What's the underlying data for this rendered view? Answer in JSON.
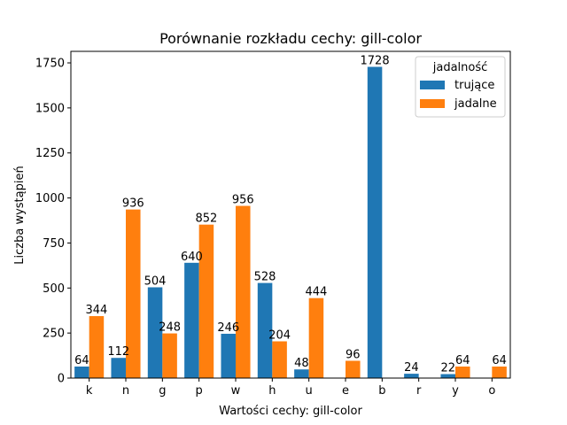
{
  "chart_data": {
    "type": "bar",
    "title": "Porównanie rozkładu cechy: gill-color",
    "xlabel": "Wartości cechy: gill-color",
    "ylabel": "Liczba wystąpień",
    "categories": [
      "k",
      "n",
      "g",
      "p",
      "w",
      "h",
      "u",
      "e",
      "b",
      "r",
      "y",
      "o"
    ],
    "series": [
      {
        "name": "trujące",
        "color": "#1f77b4",
        "values": [
          64,
          112,
          504,
          640,
          246,
          528,
          48,
          null,
          1728,
          24,
          22,
          null
        ]
      },
      {
        "name": "jadalne",
        "color": "#ff7f0e",
        "values": [
          344,
          936,
          248,
          852,
          956,
          204,
          444,
          96,
          null,
          null,
          64,
          64
        ]
      }
    ],
    "ylim": [
      0,
      1814
    ],
    "yticks": [
      0,
      250,
      500,
      750,
      1000,
      1250,
      1500,
      1750
    ],
    "legend": {
      "title": "jadalność",
      "placement": "top-right"
    },
    "grid": false
  }
}
